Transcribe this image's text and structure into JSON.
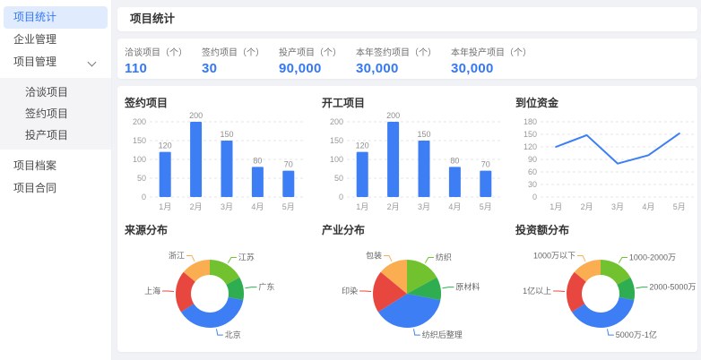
{
  "sidebar": {
    "items": [
      {
        "label": "项目统计",
        "active": true
      },
      {
        "label": "企业管理"
      },
      {
        "label": "项目管理",
        "expanded": true,
        "children": [
          "洽谈项目",
          "签约项目",
          "投产项目"
        ]
      },
      {
        "label": "项目档案"
      },
      {
        "label": "项目合同"
      }
    ]
  },
  "header": {
    "title": "项目统计"
  },
  "stats": [
    {
      "label": "洽谈项目（个）",
      "value": "110"
    },
    {
      "label": "签约项目（个）",
      "value": "30"
    },
    {
      "label": "投产项目（个）",
      "value": "90,000"
    },
    {
      "label": "本年签约项目（个）",
      "value": "30,000"
    },
    {
      "label": "本年投产项目（个）",
      "value": "30,000"
    }
  ],
  "colors": {
    "accent_blue": "#3478F6",
    "chart_blue": "#3D7EF5",
    "red": "#E8473F",
    "orange": "#FBAD51",
    "green": "#2FAE51",
    "light_green": "#72C22F",
    "active_menu_bg": "#E0EBFE",
    "grid_line": "#E3E5E8"
  },
  "chart_data": [
    {
      "type": "bar",
      "title": "签约项目",
      "categories": [
        "1月",
        "2月",
        "3月",
        "4月",
        "5月"
      ],
      "values": [
        120,
        200,
        150,
        80,
        70
      ],
      "ylim": [
        0,
        200
      ],
      "yticks": [
        0,
        50,
        100,
        150,
        200
      ],
      "grid": "dashed",
      "color": "#3D7EF5"
    },
    {
      "type": "bar",
      "title": "开工项目",
      "categories": [
        "1月",
        "2月",
        "3月",
        "4月",
        "5月"
      ],
      "values": [
        120,
        200,
        150,
        80,
        70
      ],
      "ylim": [
        0,
        200
      ],
      "yticks": [
        0,
        50,
        100,
        150,
        200
      ],
      "grid": "dashed",
      "color": "#3D7EF5"
    },
    {
      "type": "line",
      "title": "到位资金",
      "categories": [
        "1月",
        "2月",
        "3月",
        "4月",
        "5月"
      ],
      "values": [
        120,
        148,
        80,
        100,
        152
      ],
      "ylim": [
        0,
        180
      ],
      "yticks": [
        0,
        30,
        60,
        90,
        120,
        150,
        180
      ],
      "grid": "dashed",
      "color": "#3D7EF5"
    },
    {
      "type": "pie",
      "subtype": "donut",
      "title": "来源分布",
      "slices": [
        {
          "label": "江苏",
          "value": 17,
          "color": "#72C22F"
        },
        {
          "label": "广东",
          "value": 11,
          "color": "#2FAE51"
        },
        {
          "label": "北京",
          "value": 38,
          "color": "#3D7EF5"
        },
        {
          "label": "上海",
          "value": 20,
          "color": "#E8473F"
        },
        {
          "label": "浙江",
          "value": 14,
          "color": "#FBAD51"
        }
      ]
    },
    {
      "type": "pie",
      "subtype": "pie",
      "title": "产业分布",
      "slices": [
        {
          "label": "纺织",
          "value": 17,
          "color": "#72C22F"
        },
        {
          "label": "原材料",
          "value": 11,
          "color": "#2FAE51"
        },
        {
          "label": "纺织后整理",
          "value": 38,
          "color": "#3D7EF5"
        },
        {
          "label": "印染",
          "value": 20,
          "color": "#E8473F"
        },
        {
          "label": "包装",
          "value": 14,
          "color": "#FBAD51"
        }
      ]
    },
    {
      "type": "pie",
      "subtype": "donut",
      "title": "投资额分布",
      "slices": [
        {
          "label": "1000-2000万",
          "value": 17,
          "color": "#72C22F"
        },
        {
          "label": "2000-5000万",
          "value": 11,
          "color": "#2FAE51"
        },
        {
          "label": "5000万-1亿",
          "value": 38,
          "color": "#3D7EF5"
        },
        {
          "label": "1亿以上",
          "value": 20,
          "color": "#E8473F"
        },
        {
          "label": "1000万以下",
          "value": 14,
          "color": "#FBAD51"
        }
      ]
    }
  ]
}
